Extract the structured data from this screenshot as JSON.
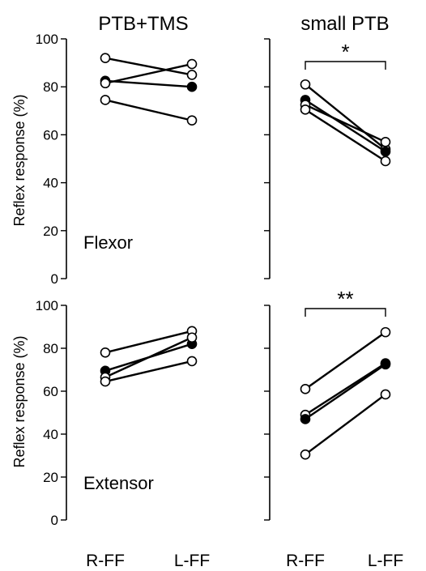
{
  "figure": {
    "col_titles": [
      "PTB+TMS",
      "small PTB"
    ],
    "row_labels": [
      "Flexor",
      "Extensor"
    ],
    "ylabel": "Reflex response (%)",
    "x_categories": [
      "R-FF",
      "L-FF"
    ],
    "y_ticks": [
      "0",
      "20",
      "40",
      "60",
      "80",
      "100"
    ]
  },
  "chart_data": [
    {
      "type": "line",
      "panel": "PTB+TMS / Flexor",
      "title": "PTB+TMS",
      "annotation": "Flexor",
      "categories": [
        "R-FF",
        "L-FF"
      ],
      "ylabel": "Reflex response (%)",
      "ylim": [
        0,
        100
      ],
      "series": [
        {
          "values": [
            92,
            85
          ],
          "filled": false
        },
        {
          "values": [
            82.5,
            80
          ],
          "filled": true
        },
        {
          "values": [
            81.5,
            89.5
          ],
          "filled": false
        },
        {
          "values": [
            74.5,
            66
          ],
          "filled": false
        }
      ],
      "significance": ""
    },
    {
      "type": "line",
      "panel": "small PTB / Flexor",
      "title": "small PTB",
      "annotation": "",
      "categories": [
        "R-FF",
        "L-FF"
      ],
      "ylabel": "",
      "ylim": [
        0,
        100
      ],
      "series": [
        {
          "values": [
            81,
            54
          ],
          "filled": false
        },
        {
          "values": [
            74.5,
            53
          ],
          "filled": true
        },
        {
          "values": [
            72.5,
            57
          ],
          "filled": false
        },
        {
          "values": [
            70.5,
            49
          ],
          "filled": false
        }
      ],
      "significance": "*"
    },
    {
      "type": "line",
      "panel": "PTB+TMS / Extensor",
      "title": "",
      "annotation": "Extensor",
      "categories": [
        "R-FF",
        "L-FF"
      ],
      "ylabel": "Reflex response (%)",
      "ylim": [
        0,
        100
      ],
      "series": [
        {
          "values": [
            78,
            88
          ],
          "filled": false
        },
        {
          "values": [
            69.5,
            82
          ],
          "filled": true
        },
        {
          "values": [
            66.5,
            85
          ],
          "filled": false
        },
        {
          "values": [
            64.5,
            74
          ],
          "filled": false
        }
      ],
      "significance": ""
    },
    {
      "type": "line",
      "panel": "small PTB / Extensor",
      "title": "",
      "annotation": "",
      "categories": [
        "R-FF",
        "L-FF"
      ],
      "ylabel": "",
      "ylim": [
        0,
        100
      ],
      "series": [
        {
          "values": [
            61,
            87.5
          ],
          "filled": false
        },
        {
          "values": [
            49,
            73
          ],
          "filled": false
        },
        {
          "values": [
            47,
            72.5
          ],
          "filled": true
        },
        {
          "values": [
            30.5,
            58.5
          ],
          "filled": false
        }
      ],
      "significance": "**"
    }
  ]
}
